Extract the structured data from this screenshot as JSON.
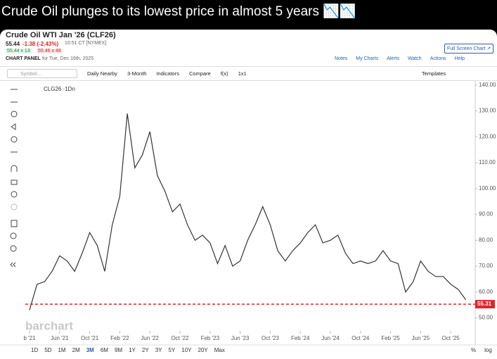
{
  "tweet": {
    "title": "Crude Oil plunges to its lowest price in almost 5 years 📉📉"
  },
  "ui": {
    "symbol_title": "Crude Oil WTI Jan '26 (CLF26)",
    "last": "55.44",
    "change": "-1.38 (-2.43%)",
    "time": "10:51 CT [NYMEX]",
    "bid": "55.44 x 13",
    "ask": "55.46 x 48",
    "panel": "CHART PANEL",
    "panel_date": "for Tue, Dec 16th, 2025",
    "full_screen": "Full Screen Chart ↗",
    "header_links": [
      "Notes",
      "My Charts",
      "Alerts",
      "Watch",
      "Actions",
      "Help"
    ],
    "symbol_placeholder": "Symbol...",
    "toolbar": [
      "Daily Nearby",
      "3-Month",
      "Indicators",
      "Compare",
      "f(x)",
      "1x1"
    ],
    "templates": "Templates",
    "watermark": "barchart",
    "ranges": [
      "1D",
      "5D",
      "1M",
      "2M",
      "3M",
      "6M",
      "9M",
      "1Y",
      "2Y",
      "3Y",
      "5Y",
      "10Y",
      "20Y",
      "Max"
    ],
    "active_range": "3M",
    "scale_options": [
      "%",
      "log"
    ]
  },
  "chart_data": {
    "type": "line",
    "categories": [
      "b '21",
      null,
      null,
      null,
      "Jun '21",
      null,
      null,
      null,
      "Oct '21",
      null,
      null,
      null,
      "Feb '22",
      null,
      null,
      null,
      "Jun '22",
      null,
      null,
      null,
      "Oct '22",
      null,
      null,
      null,
      "Feb '23",
      null,
      null,
      null,
      "Jun '23",
      null,
      null,
      null,
      "Oct '23",
      null,
      null,
      null,
      "Feb '24",
      null,
      null,
      null,
      "Jun '24",
      null,
      null,
      null,
      "Oct '24",
      null,
      null,
      null,
      "Feb '25",
      null,
      null,
      null,
      "Jun '25",
      null,
      null,
      null,
      "Oct '25",
      null,
      null
    ],
    "series": [
      {
        "name": "CLG26 ·1Dn",
        "color": "#333333",
        "values": [
          53,
          63,
          64,
          68,
          74,
          72,
          68,
          75,
          83,
          78,
          68,
          86,
          97,
          129,
          108,
          113,
          122,
          105,
          99,
          91,
          94,
          86,
          80,
          82,
          79,
          71,
          78,
          70,
          72,
          80,
          86,
          93,
          86,
          76,
          72,
          76,
          79,
          83,
          86,
          79,
          80,
          82,
          75,
          71,
          72,
          71,
          72,
          76,
          72,
          71,
          60,
          64,
          72,
          68,
          66,
          66,
          63,
          61,
          57
        ]
      }
    ],
    "last_price": 55.31,
    "last_price_color": "#e0242c",
    "ylim": [
      45,
      141.6
    ],
    "yticks": [
      {
        "value": 50,
        "label": "50.00"
      },
      {
        "value": 60,
        "label": "60.00"
      },
      {
        "value": 70,
        "label": "70.00"
      },
      {
        "value": 80,
        "label": "80.00"
      },
      {
        "value": 90,
        "label": "90.00"
      },
      {
        "value": 100,
        "label": "100.00"
      },
      {
        "value": 110,
        "label": "110.00"
      },
      {
        "value": 120,
        "label": "120.00"
      },
      {
        "value": 130,
        "label": "130.00"
      },
      {
        "value": 140,
        "label": "140.00"
      }
    ]
  }
}
